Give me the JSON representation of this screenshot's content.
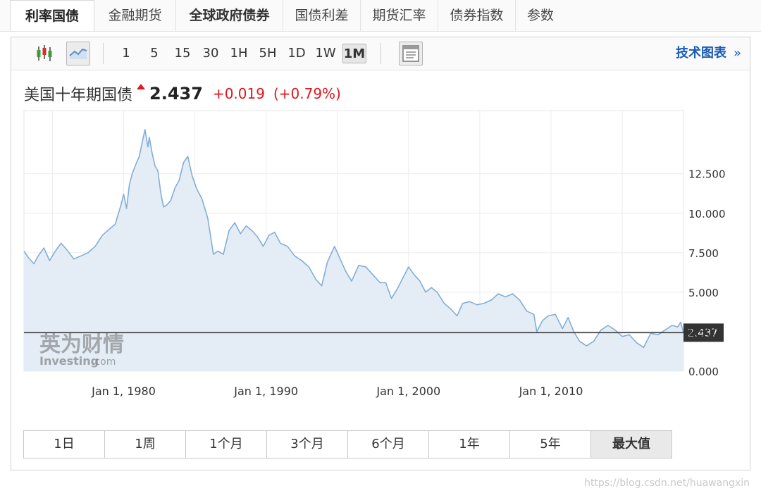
{
  "nav": {
    "tabs": [
      {
        "label": "利率国债",
        "active": true
      },
      {
        "label": "金融期货"
      },
      {
        "label": "全球政府债券",
        "bold": true
      },
      {
        "label": "国债利差"
      },
      {
        "label": "期货汇率"
      },
      {
        "label": "债券指数"
      },
      {
        "label": "参数"
      }
    ]
  },
  "toolbar": {
    "chart_type_icons": [
      "candlestick-icon",
      "line-chart-icon"
    ],
    "intervals": [
      "1",
      "5",
      "15",
      "30",
      "1H",
      "5H",
      "1D",
      "1W",
      "1M"
    ],
    "active_interval": "1M",
    "layout_icon": "chart-layout-icon",
    "tech_link": "技术图表",
    "tech_arrows": "»"
  },
  "quote": {
    "name": "美国十年期国债",
    "price": "2.437",
    "change": "+0.019",
    "change_pct": "(+0.79%)",
    "direction": "up",
    "up_color": "#e0161c"
  },
  "ranges": [
    "1日",
    "1周",
    "1个月",
    "3个月",
    "6个月",
    "1年",
    "5年",
    "最大值"
  ],
  "active_range": "最大值",
  "logo": {
    "cn": "英为财情",
    "en": "Investing",
    "suffix": ".com"
  },
  "watermark": "https://blog.csdn.net/huawangxin",
  "chart_data": {
    "type": "area",
    "title": "美国十年期国债",
    "current_value": 2.437,
    "current_label": "2.437",
    "yticks": [
      "0.000",
      "2.500",
      "5.000",
      "7.500",
      "10.000",
      "12.500"
    ],
    "ytick_values": [
      0,
      2.5,
      5,
      7.5,
      10,
      12.5
    ],
    "ylim": [
      0,
      16.5
    ],
    "xticks": [
      "Jan 1, 1980",
      "Jan 1, 1990",
      "Jan 1, 2000",
      "Jan 1, 2010"
    ],
    "xtick_values": [
      1980,
      1990,
      2000,
      2010
    ],
    "xlim": [
      1973.0,
      2019.3
    ],
    "line_color": "#82aed6",
    "fill_color": "#e4edf5",
    "grid": true,
    "series": [
      {
        "x": [
          1973.0,
          1973.3,
          1973.7,
          1974.0,
          1974.4,
          1974.8,
          1975.2,
          1975.6,
          1976.0,
          1976.5,
          1977.0,
          1977.5,
          1978.0,
          1978.5,
          1979.0,
          1979.4,
          1979.8,
          1980.0,
          1980.2,
          1980.4,
          1980.6,
          1980.9,
          1981.1,
          1981.3,
          1981.5,
          1981.7,
          1981.8,
          1982.0,
          1982.2,
          1982.4,
          1982.6,
          1982.8,
          1983.0,
          1983.3,
          1983.6,
          1983.9,
          1984.2,
          1984.5,
          1984.8,
          1985.1,
          1985.5,
          1985.9,
          1986.3,
          1986.6,
          1987.0,
          1987.4,
          1987.8,
          1988.2,
          1988.6,
          1989.0,
          1989.4,
          1989.8,
          1990.2,
          1990.6,
          1991.0,
          1991.5,
          1992.0,
          1992.5,
          1993.0,
          1993.5,
          1993.9,
          1994.3,
          1994.8,
          1995.2,
          1995.6,
          1996.0,
          1996.5,
          1997.0,
          1997.5,
          1998.0,
          1998.4,
          1998.8,
          1999.2,
          1999.6,
          2000.0,
          2000.4,
          2000.8,
          2001.2,
          2001.6,
          2002.0,
          2002.5,
          2003.0,
          2003.4,
          2003.8,
          2004.3,
          2004.8,
          2005.3,
          2005.8,
          2006.3,
          2006.8,
          2007.3,
          2007.8,
          2008.3,
          2008.8,
          2009.0,
          2009.4,
          2009.8,
          2010.3,
          2010.8,
          2011.2,
          2011.6,
          2012.0,
          2012.5,
          2013.0,
          2013.5,
          2014.0,
          2014.5,
          2015.0,
          2015.5,
          2016.0,
          2016.5,
          2017.0,
          2017.5,
          2018.0,
          2018.5,
          2018.9,
          2019.1,
          2019.3
        ],
        "y": [
          7.6,
          7.2,
          6.8,
          7.3,
          7.8,
          7.0,
          7.6,
          8.1,
          7.7,
          7.1,
          7.3,
          7.5,
          7.9,
          8.6,
          9.0,
          9.3,
          10.5,
          11.2,
          10.3,
          11.8,
          12.5,
          13.2,
          13.6,
          14.5,
          15.3,
          14.2,
          14.8,
          13.8,
          13.0,
          12.7,
          11.3,
          10.4,
          10.5,
          10.8,
          11.6,
          12.1,
          13.2,
          13.6,
          12.4,
          11.6,
          10.9,
          9.7,
          7.4,
          7.6,
          7.4,
          8.9,
          9.4,
          8.7,
          9.2,
          8.9,
          8.5,
          7.9,
          8.6,
          8.8,
          8.1,
          7.9,
          7.3,
          7.0,
          6.6,
          5.8,
          5.4,
          6.9,
          7.9,
          7.1,
          6.3,
          5.7,
          6.7,
          6.6,
          6.1,
          5.6,
          5.6,
          4.6,
          5.2,
          5.9,
          6.6,
          6.1,
          5.7,
          5.0,
          5.3,
          5.0,
          4.3,
          3.9,
          3.5,
          4.3,
          4.4,
          4.2,
          4.3,
          4.5,
          4.9,
          4.7,
          4.9,
          4.5,
          3.8,
          3.6,
          2.5,
          3.2,
          3.5,
          3.6,
          2.7,
          3.4,
          2.5,
          1.9,
          1.6,
          1.9,
          2.6,
          2.9,
          2.6,
          2.2,
          2.3,
          1.8,
          1.5,
          2.4,
          2.3,
          2.6,
          2.9,
          2.8,
          3.1,
          2.437
        ]
      }
    ]
  }
}
